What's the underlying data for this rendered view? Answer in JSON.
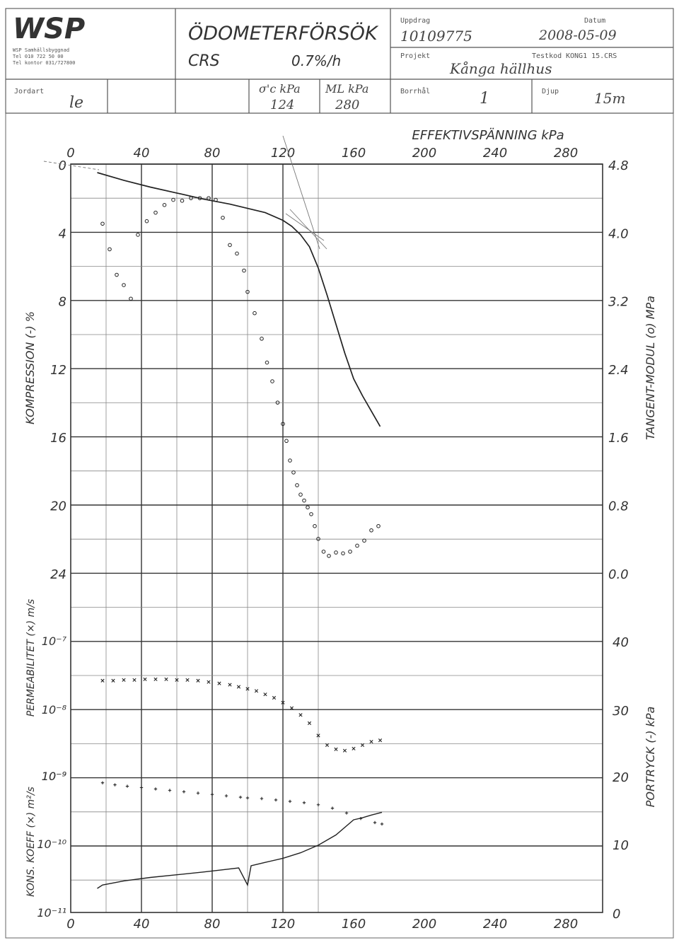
{
  "header": {
    "company": "WSP",
    "company_lines": [
      "WSP Samhällsbyggnad",
      "Tel 010 722 50 00",
      "Tel kontor 031/727800"
    ],
    "title": "ÖDOMETERFÖRSÖK",
    "method": "CRS",
    "rate": "0.7%/h",
    "uppdrag_label": "Uppdrag",
    "uppdrag_value": "10109775",
    "datum_label": "Datum",
    "datum_value": "2008-05-09",
    "projekt_label": "Projekt",
    "projekt_value": "Kånga hällhus",
    "testkod_label": "Testkod",
    "testkod_value": "KONG1 15.CRS",
    "jordart_label": "Jordart",
    "jordart_value": "le",
    "sigma_label": "σ'c kPa",
    "sigma_value": "124",
    "ml_label": "ML kPa",
    "ml_value": "280",
    "borrhal_label": "Borrhål",
    "borrhal_value": "1",
    "djup_label": "Djup",
    "djup_value": "15m"
  },
  "chart_data": {
    "type": "line",
    "xlabel": "EFFEKTIVSPÄNNING kPa",
    "x_ticks": [
      "0",
      "40",
      "80",
      "120",
      "160",
      "200",
      "240",
      "280"
    ],
    "xlim": [
      0,
      300
    ],
    "panels": [
      {
        "name": "compression",
        "ylabel_left": "KOMPRESSION (-) %",
        "left_ticks": [
          "0",
          "4",
          "8",
          "12",
          "16",
          "20",
          "24"
        ],
        "ylim_left": [
          0,
          24
        ],
        "ylabel_right": "TANGENT-MODUL (o) MPa",
        "right_ticks": [
          "4.8",
          "4.0",
          "3.2",
          "2.4",
          "1.6",
          "0.8",
          "0.0"
        ],
        "ylim_right": [
          0,
          4.8
        ],
        "series": [
          {
            "kind": "line",
            "axis": "left",
            "x": [
              15,
              30,
              45,
              60,
              75,
              90,
              100,
              110,
              120,
              125,
              130,
              135,
              140,
              145,
              150,
              155,
              160,
              165,
              170,
              175
            ],
            "values": [
              0.5,
              0.95,
              1.35,
              1.7,
              2.05,
              2.35,
              2.6,
              2.85,
              3.3,
              3.65,
              4.15,
              4.85,
              6.1,
              7.7,
              9.4,
              11.1,
              12.6,
              13.6,
              14.5,
              15.4
            ]
          },
          {
            "kind": "points",
            "axis": "right",
            "x": [
              18,
              22,
              26,
              30,
              34,
              38,
              43,
              48,
              53,
              58,
              63,
              68,
              73,
              78,
              82,
              86,
              90,
              94,
              98,
              100,
              104,
              108,
              111,
              114,
              117,
              120,
              122,
              124,
              126,
              128,
              130,
              132,
              134,
              136,
              138,
              140,
              143,
              146,
              150,
              154,
              158,
              162,
              166,
              170,
              174
            ],
            "values": [
              4.1,
              3.8,
              3.5,
              3.38,
              3.22,
              3.97,
              4.13,
              4.23,
              4.32,
              4.38,
              4.37,
              4.4,
              4.4,
              4.4,
              4.38,
              4.17,
              3.85,
              3.75,
              3.55,
              3.3,
              3.05,
              2.75,
              2.47,
              2.25,
              2.0,
              1.75,
              1.55,
              1.32,
              1.18,
              1.03,
              0.92,
              0.85,
              0.77,
              0.69,
              0.55,
              0.4,
              0.25,
              0.2,
              0.24,
              0.23,
              0.25,
              0.32,
              0.38,
              0.5,
              0.55
            ]
          }
        ]
      },
      {
        "name": "permeability",
        "ylabel_left": "PERMEABILITET (×) m/s",
        "left_ticks": [
          "10⁻⁷",
          "10⁻⁸",
          "10⁻⁹"
        ],
        "ylabel_right": "PORTRYCK (-) kPa",
        "right_ticks": [
          "40",
          "30",
          "20"
        ],
        "series": [
          {
            "kind": "points",
            "axis": "left",
            "log": true,
            "x": [
              18,
              24,
              30,
              36,
              42,
              48,
              54,
              60,
              66,
              72,
              78,
              84,
              90,
              95,
              100,
              105,
              110,
              115,
              120,
              125,
              130,
              135,
              140,
              145,
              150,
              155,
              160,
              165,
              170,
              175
            ],
            "values": [
              -7.58,
              -7.58,
              -7.57,
              -7.57,
              -7.56,
              -7.56,
              -7.56,
              -7.57,
              -7.57,
              -7.58,
              -7.6,
              -7.62,
              -7.64,
              -7.67,
              -7.7,
              -7.73,
              -7.78,
              -7.83,
              -7.9,
              -7.98,
              -8.08,
              -8.2,
              -8.38,
              -8.52,
              -8.58,
              -8.6,
              -8.57,
              -8.52,
              -8.47,
              -8.45
            ]
          }
        ]
      },
      {
        "name": "consolidation",
        "ylabel_left": "KONS. KOEFF (×) m²/s",
        "left_ticks": [
          "10⁻⁹",
          "10⁻¹⁰",
          "10⁻¹¹"
        ],
        "ylabel_right": "PORTRYCK (-) kPa",
        "right_ticks": [
          "20",
          "10",
          "0"
        ],
        "series": [
          {
            "kind": "points",
            "axis": "left",
            "log": true,
            "x": [
              18,
              25,
              32,
              40,
              48,
              56,
              64,
              72,
              80,
              88,
              96,
              100,
              108,
              116,
              124,
              132,
              140,
              148,
              156,
              164,
              172,
              176
            ],
            "values": [
              -9.1,
              -9.13,
              -9.15,
              -9.17,
              -9.19,
              -9.21,
              -9.23,
              -9.25,
              -9.27,
              -9.29,
              -9.31,
              -9.32,
              -9.33,
              -9.35,
              -9.37,
              -9.39,
              -9.42,
              -9.47,
              -9.54,
              -9.62,
              -9.68,
              -9.7
            ]
          },
          {
            "kind": "line",
            "axis": "right",
            "x": [
              15,
              18,
              30,
              45,
              60,
              75,
              85,
              95,
              98,
              100,
              102,
              110,
              120,
              130,
              140,
              150,
              160,
              165,
              170,
              176
            ],
            "values": [
              3.5,
              4.0,
              4.6,
              5.1,
              5.5,
              5.9,
              6.2,
              6.5,
              5.0,
              4.0,
              6.8,
              7.3,
              7.9,
              8.7,
              9.8,
              11.3,
              13.5,
              13.8,
              14.2,
              14.6
            ]
          }
        ]
      }
    ],
    "grid": true
  }
}
